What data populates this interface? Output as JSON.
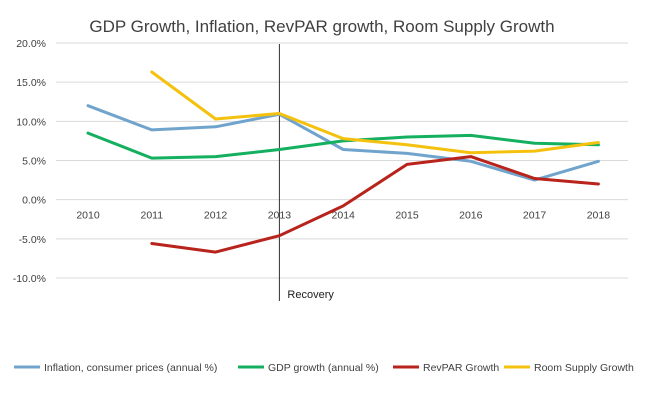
{
  "chart_data": {
    "type": "line",
    "title": "GDP Growth, Inflation, RevPAR growth, Room Supply Growth",
    "xlabel": "",
    "ylabel": "",
    "categories": [
      "2010",
      "2011",
      "2012",
      "2013",
      "2014",
      "2015",
      "2016",
      "2017",
      "2018"
    ],
    "ylim": [
      -0.1,
      0.2
    ],
    "yticks": [
      0.2,
      0.15,
      0.1,
      0.05,
      0.0,
      -0.05,
      -0.1
    ],
    "ytick_labels": [
      "20.0%",
      "15.0%",
      "10.0%",
      "5.0%",
      "0.0%",
      "-5.0%",
      "-10.0%"
    ],
    "grid": true,
    "legend_position": "bottom",
    "series": [
      {
        "name": "Inflation, consumer prices (annual %)",
        "color": "#71a4cc",
        "values": [
          0.12,
          0.089,
          0.093,
          0.109,
          0.064,
          0.059,
          0.049,
          0.025,
          0.049
        ]
      },
      {
        "name": "GDP growth (annual %)",
        "color": "#14b060",
        "values": [
          0.085,
          0.053,
          0.055,
          0.064,
          0.075,
          0.08,
          0.082,
          0.072,
          0.07
        ]
      },
      {
        "name": "RevPAR Growth",
        "color": "#b8231c",
        "values": [
          null,
          -0.056,
          -0.067,
          -0.046,
          -0.008,
          0.045,
          0.055,
          0.027,
          0.02
        ]
      },
      {
        "name": "Room Supply Growth",
        "color": "#f4c10f",
        "values": [
          null,
          0.163,
          0.103,
          0.11,
          0.078,
          0.07,
          0.06,
          0.062,
          0.073
        ]
      }
    ],
    "annotations": [
      {
        "text": "Recovery",
        "at_category": "2013"
      }
    ]
  }
}
